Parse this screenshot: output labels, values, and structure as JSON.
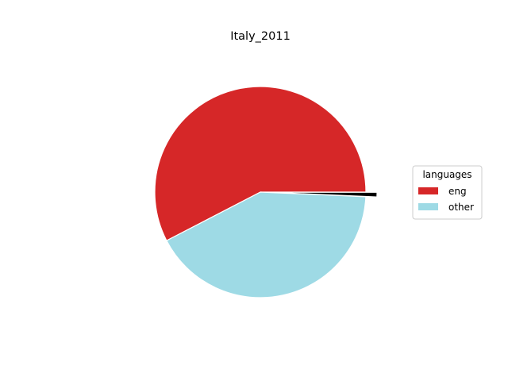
{
  "chart_data": {
    "type": "pie",
    "title": "Italy_2011",
    "legend": {
      "title": "languages",
      "placement": "right"
    },
    "categories": [
      "eng",
      "other",
      ""
    ],
    "values": [
      57.6,
      41.7,
      0.7
    ],
    "colors": [
      "#d62728",
      "#9edae5",
      "#000000"
    ],
    "exploded": [
      false,
      false,
      true
    ],
    "start_angle_deg": 0,
    "direction": "counterclockwise"
  }
}
